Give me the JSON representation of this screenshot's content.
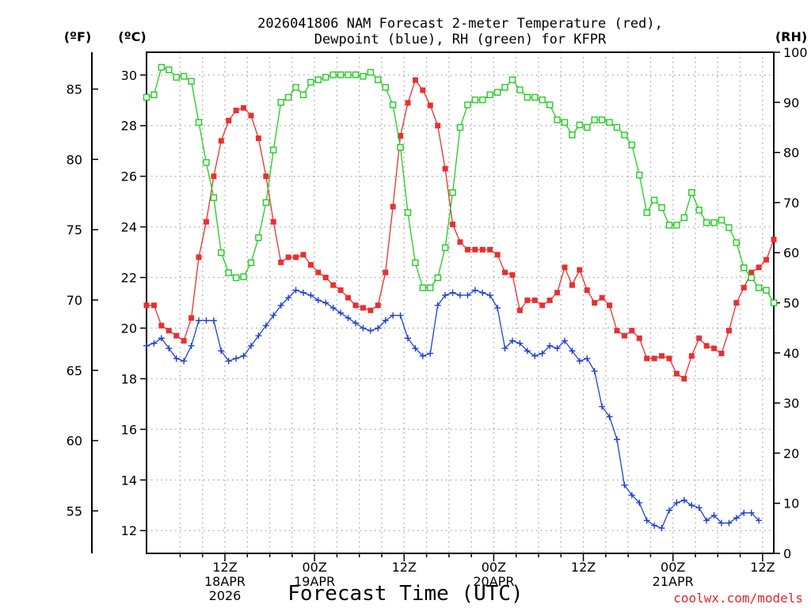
{
  "chart_data": {
    "type": "line",
    "title_lines": [
      "2026041806 NAM Forecast 2-meter Temperature (red),",
      "Dewpoint (blue), RH (green) for KFPR"
    ],
    "xlabel": "Forecast Time (UTC)",
    "credit": "coolwx.com/models",
    "axis_units": {
      "fahrenheit": "(ºF)",
      "celsius": "(ºC)",
      "rh": "(RH)"
    },
    "x_range_hours": [
      -4.5,
      79.5
    ],
    "celsius_range": [
      11.1,
      30.9
    ],
    "rh_range": [
      0,
      100
    ],
    "celsius_ticks": [
      12,
      14,
      16,
      18,
      20,
      22,
      24,
      26,
      28,
      30
    ],
    "fahrenheit_ticks": [
      55,
      60,
      65,
      70,
      75,
      80,
      85
    ],
    "rh_ticks": [
      0,
      10,
      20,
      30,
      40,
      50,
      60,
      70,
      80,
      90,
      100
    ],
    "x_ticks": [
      {
        "hour": 6,
        "lines": [
          "12Z",
          "18APR",
          "2026"
        ]
      },
      {
        "hour": 18,
        "lines": [
          "00Z",
          "19APR"
        ]
      },
      {
        "hour": 30,
        "lines": [
          "12Z"
        ]
      },
      {
        "hour": 42,
        "lines": [
          "00Z",
          "20APR"
        ]
      },
      {
        "hour": 54,
        "lines": [
          "12Z"
        ]
      },
      {
        "hour": 66,
        "lines": [
          "00Z",
          "21APR"
        ]
      },
      {
        "hour": 78,
        "lines": [
          "12Z"
        ]
      }
    ],
    "grid": true,
    "series": [
      {
        "name": "Temperature",
        "unit": "C",
        "color": "#e83030",
        "marker": "square-filled",
        "points": [
          [
            -4.5,
            20.9
          ],
          [
            -3.5,
            20.9
          ],
          [
            -2.5,
            20.1
          ],
          [
            -1.5,
            19.9
          ],
          [
            -0.5,
            19.7
          ],
          [
            0.5,
            19.5
          ],
          [
            1.5,
            20.4
          ],
          [
            2.5,
            22.8
          ],
          [
            3.5,
            24.2
          ],
          [
            4.5,
            26.0
          ],
          [
            5.5,
            27.4
          ],
          [
            6.5,
            28.2
          ],
          [
            7.5,
            28.6
          ],
          [
            8.5,
            28.7
          ],
          [
            9.5,
            28.4
          ],
          [
            10.5,
            27.5
          ],
          [
            11.5,
            26.0
          ],
          [
            12.5,
            24.2
          ],
          [
            13.5,
            22.6
          ],
          [
            14.5,
            22.8
          ],
          [
            15.5,
            22.8
          ],
          [
            16.5,
            22.9
          ],
          [
            17.5,
            22.5
          ],
          [
            18.5,
            22.2
          ],
          [
            19.5,
            22.0
          ],
          [
            20.5,
            21.7
          ],
          [
            21.5,
            21.5
          ],
          [
            22.5,
            21.2
          ],
          [
            23.5,
            20.9
          ],
          [
            24.5,
            20.8
          ],
          [
            25.5,
            20.7
          ],
          [
            26.5,
            20.9
          ],
          [
            27.5,
            22.2
          ],
          [
            28.5,
            24.8
          ],
          [
            29.5,
            27.6
          ],
          [
            30.5,
            28.9
          ],
          [
            31.5,
            29.8
          ],
          [
            32.5,
            29.4
          ],
          [
            33.5,
            28.8
          ],
          [
            34.5,
            28.0
          ],
          [
            35.5,
            26.3
          ],
          [
            36.5,
            24.1
          ],
          [
            37.5,
            23.4
          ],
          [
            38.5,
            23.1
          ],
          [
            39.5,
            23.1
          ],
          [
            40.5,
            23.1
          ],
          [
            41.5,
            23.1
          ],
          [
            42.5,
            22.9
          ],
          [
            43.5,
            22.2
          ],
          [
            44.5,
            22.1
          ],
          [
            45.5,
            20.7
          ],
          [
            46.5,
            21.1
          ],
          [
            47.5,
            21.1
          ],
          [
            48.5,
            20.9
          ],
          [
            49.5,
            21.1
          ],
          [
            50.5,
            21.4
          ],
          [
            51.5,
            22.4
          ],
          [
            52.5,
            21.7
          ],
          [
            53.5,
            22.3
          ],
          [
            54.5,
            21.5
          ],
          [
            55.5,
            21.0
          ],
          [
            56.5,
            21.2
          ],
          [
            57.5,
            20.9
          ],
          [
            58.5,
            19.9
          ],
          [
            59.5,
            19.7
          ],
          [
            60.5,
            19.9
          ],
          [
            61.5,
            19.6
          ],
          [
            62.5,
            18.8
          ],
          [
            63.5,
            18.8
          ],
          [
            64.5,
            18.9
          ],
          [
            65.5,
            18.8
          ],
          [
            66.5,
            18.2
          ],
          [
            67.5,
            18.0
          ],
          [
            68.5,
            18.9
          ],
          [
            69.5,
            19.6
          ],
          [
            70.5,
            19.3
          ],
          [
            71.5,
            19.2
          ],
          [
            72.5,
            19.0
          ],
          [
            73.5,
            19.9
          ],
          [
            74.5,
            21.0
          ],
          [
            75.5,
            21.6
          ],
          [
            76.5,
            22.2
          ],
          [
            77.5,
            22.4
          ],
          [
            78.5,
            22.7
          ],
          [
            79.5,
            23.5
          ]
        ]
      },
      {
        "name": "Dewpoint",
        "unit": "C",
        "color": "#2040d8",
        "marker": "plus",
        "points": [
          [
            -4.5,
            19.3
          ],
          [
            -3.5,
            19.4
          ],
          [
            -2.5,
            19.6
          ],
          [
            -1.5,
            19.2
          ],
          [
            -0.5,
            18.8
          ],
          [
            0.5,
            18.7
          ],
          [
            1.5,
            19.3
          ],
          [
            2.5,
            20.3
          ],
          [
            3.5,
            20.3
          ],
          [
            4.5,
            20.3
          ],
          [
            5.5,
            19.1
          ],
          [
            6.5,
            18.7
          ],
          [
            7.5,
            18.8
          ],
          [
            8.5,
            18.9
          ],
          [
            9.5,
            19.3
          ],
          [
            10.5,
            19.7
          ],
          [
            11.5,
            20.1
          ],
          [
            12.5,
            20.5
          ],
          [
            13.5,
            20.9
          ],
          [
            14.5,
            21.2
          ],
          [
            15.5,
            21.5
          ],
          [
            16.5,
            21.4
          ],
          [
            17.5,
            21.3
          ],
          [
            18.5,
            21.1
          ],
          [
            19.5,
            21.0
          ],
          [
            20.5,
            20.8
          ],
          [
            21.5,
            20.6
          ],
          [
            22.5,
            20.4
          ],
          [
            23.5,
            20.2
          ],
          [
            24.5,
            20.0
          ],
          [
            25.5,
            19.9
          ],
          [
            26.5,
            20.0
          ],
          [
            27.5,
            20.3
          ],
          [
            28.5,
            20.5
          ],
          [
            29.5,
            20.5
          ],
          [
            30.5,
            19.6
          ],
          [
            31.5,
            19.2
          ],
          [
            32.5,
            18.9
          ],
          [
            33.5,
            19.0
          ],
          [
            34.5,
            20.9
          ],
          [
            35.5,
            21.3
          ],
          [
            36.5,
            21.4
          ],
          [
            37.5,
            21.3
          ],
          [
            38.5,
            21.3
          ],
          [
            39.5,
            21.5
          ],
          [
            40.5,
            21.4
          ],
          [
            41.5,
            21.3
          ],
          [
            42.5,
            20.8
          ],
          [
            43.5,
            19.2
          ],
          [
            44.5,
            19.5
          ],
          [
            45.5,
            19.4
          ],
          [
            46.5,
            19.1
          ],
          [
            47.5,
            18.9
          ],
          [
            48.5,
            19.0
          ],
          [
            49.5,
            19.3
          ],
          [
            50.5,
            19.2
          ],
          [
            51.5,
            19.5
          ],
          [
            52.5,
            19.1
          ],
          [
            53.5,
            18.7
          ],
          [
            54.5,
            18.8
          ],
          [
            55.5,
            18.3
          ],
          [
            56.5,
            16.9
          ],
          [
            57.5,
            16.5
          ],
          [
            58.5,
            15.6
          ],
          [
            59.5,
            13.8
          ],
          [
            60.5,
            13.4
          ],
          [
            61.5,
            13.1
          ],
          [
            62.5,
            12.4
          ],
          [
            63.5,
            12.2
          ],
          [
            64.5,
            12.1
          ],
          [
            65.5,
            12.8
          ],
          [
            66.5,
            13.1
          ],
          [
            67.5,
            13.2
          ],
          [
            68.5,
            13.0
          ],
          [
            69.5,
            12.9
          ],
          [
            70.5,
            12.4
          ],
          [
            71.5,
            12.6
          ],
          [
            72.5,
            12.3
          ],
          [
            73.5,
            12.3
          ],
          [
            74.5,
            12.5
          ],
          [
            75.5,
            12.7
          ],
          [
            76.5,
            12.7
          ],
          [
            77.5,
            12.4
          ]
        ]
      },
      {
        "name": "RH",
        "unit": "%",
        "color": "#20cc20",
        "marker": "square-open",
        "points": [
          [
            -4.5,
            91
          ],
          [
            -3.5,
            91.5
          ],
          [
            -2.5,
            97
          ],
          [
            -1.5,
            96.5
          ],
          [
            -0.5,
            95
          ],
          [
            0.5,
            95.2
          ],
          [
            1.5,
            94.2
          ],
          [
            2.5,
            86
          ],
          [
            3.5,
            78
          ],
          [
            4.5,
            71
          ],
          [
            5.5,
            60
          ],
          [
            6.5,
            56
          ],
          [
            7.5,
            55
          ],
          [
            8.5,
            55.2
          ],
          [
            9.5,
            58
          ],
          [
            10.5,
            63
          ],
          [
            11.5,
            70
          ],
          [
            12.5,
            80.5
          ],
          [
            13.5,
            90
          ],
          [
            14.5,
            91
          ],
          [
            15.5,
            93
          ],
          [
            16.5,
            91.5
          ],
          [
            17.5,
            94
          ],
          [
            18.5,
            94.5
          ],
          [
            19.5,
            95
          ],
          [
            20.5,
            95.5
          ],
          [
            21.5,
            95.5
          ],
          [
            22.5,
            95.5
          ],
          [
            23.5,
            95.5
          ],
          [
            24.5,
            95.2
          ],
          [
            25.5,
            96
          ],
          [
            26.5,
            94.5
          ],
          [
            27.5,
            93
          ],
          [
            28.5,
            89.5
          ],
          [
            29.5,
            81
          ],
          [
            30.5,
            68
          ],
          [
            31.5,
            58
          ],
          [
            32.5,
            53
          ],
          [
            33.5,
            53
          ],
          [
            34.5,
            55
          ],
          [
            35.5,
            61
          ],
          [
            36.5,
            72
          ],
          [
            37.5,
            85
          ],
          [
            38.5,
            89.5
          ],
          [
            39.5,
            90.5
          ],
          [
            40.5,
            90.5
          ],
          [
            41.5,
            91.5
          ],
          [
            42.5,
            92
          ],
          [
            43.5,
            93
          ],
          [
            44.5,
            94.5
          ],
          [
            45.5,
            92.5
          ],
          [
            46.5,
            91
          ],
          [
            47.5,
            91
          ],
          [
            48.5,
            90.5
          ],
          [
            49.5,
            89.5
          ],
          [
            50.5,
            86.5
          ],
          [
            51.5,
            86
          ],
          [
            52.5,
            83.5
          ],
          [
            53.5,
            85.5
          ],
          [
            54.5,
            85
          ],
          [
            55.5,
            86.5
          ],
          [
            56.5,
            86.5
          ],
          [
            57.5,
            86
          ],
          [
            58.5,
            85
          ],
          [
            59.5,
            83.5
          ],
          [
            60.5,
            81.5
          ],
          [
            61.5,
            75.5
          ],
          [
            62.5,
            68
          ],
          [
            63.5,
            70.5
          ],
          [
            64.5,
            69
          ],
          [
            65.5,
            65.5
          ],
          [
            66.5,
            65.5
          ],
          [
            67.5,
            67
          ],
          [
            68.5,
            72
          ],
          [
            69.5,
            68.5
          ],
          [
            70.5,
            66
          ],
          [
            71.5,
            66
          ],
          [
            72.5,
            66.5
          ],
          [
            73.5,
            65
          ],
          [
            74.5,
            62
          ],
          [
            75.5,
            57
          ],
          [
            76.5,
            55
          ],
          [
            77.5,
            53
          ],
          [
            78.5,
            52.5
          ],
          [
            79.5,
            50
          ]
        ]
      }
    ]
  }
}
